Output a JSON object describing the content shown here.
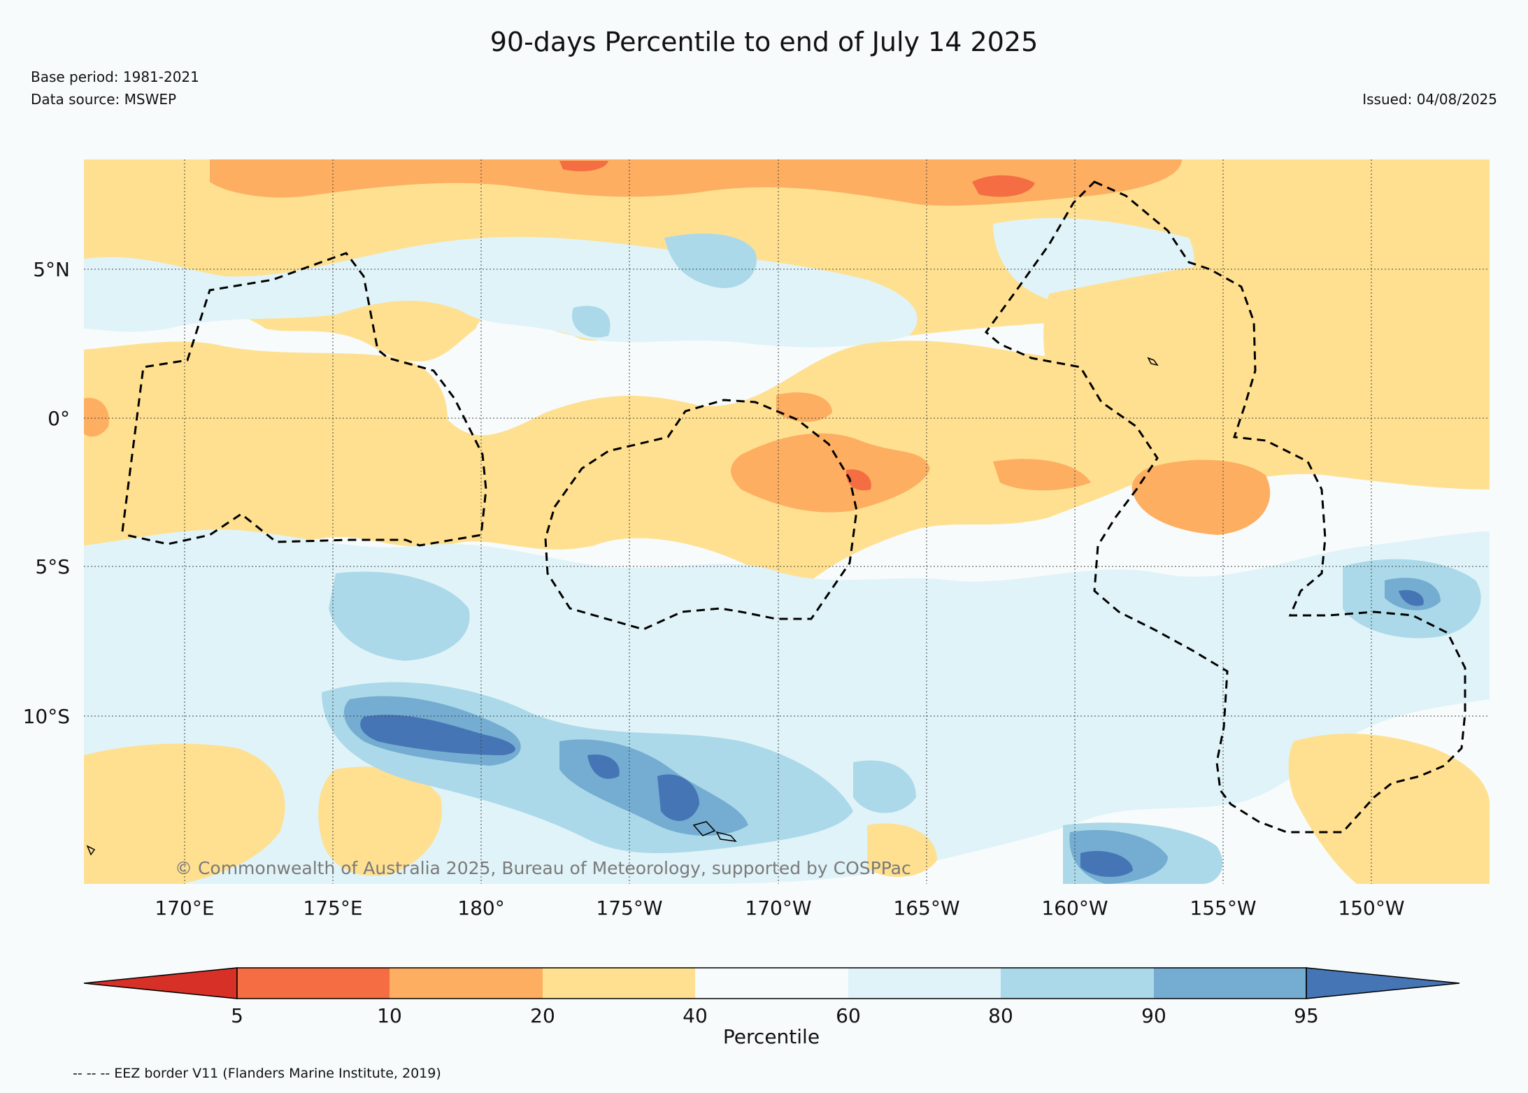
{
  "title": "90-days Percentile to end of July 14 2025",
  "base_period": "Base period: 1981-2021",
  "data_source": "Data source: MSWEP",
  "issued": "Issued: 04/08/2025",
  "copyright": "© Commonwealth of Australia 2025, Bureau of Meteorology, supported by COSPPac",
  "footer": "-- -- -- EEZ border V11 (Flanders Marine Institute, 2019)",
  "map": {
    "lat_labels": [
      "5°N",
      "0°",
      "5°S",
      "10°S"
    ],
    "lon_labels": [
      "170°E",
      "175°E",
      "180°",
      "175°W",
      "170°W",
      "165°W",
      "160°W",
      "155°W",
      "150°W"
    ]
  },
  "colorbar": {
    "label": "Percentile",
    "ticks": [
      "5",
      "10",
      "20",
      "40",
      "60",
      "80",
      "90",
      "95"
    ],
    "colors": {
      "below_5": "#d73027",
      "5_10": "#f46d43",
      "10_20": "#fdae61",
      "20_40": "#fee090",
      "40_60": "#f7fbfc",
      "60_80": "#e0f3f8",
      "80_90": "#abd9e9",
      "90_95": "#74add1",
      "above_95": "#4575b4"
    }
  }
}
